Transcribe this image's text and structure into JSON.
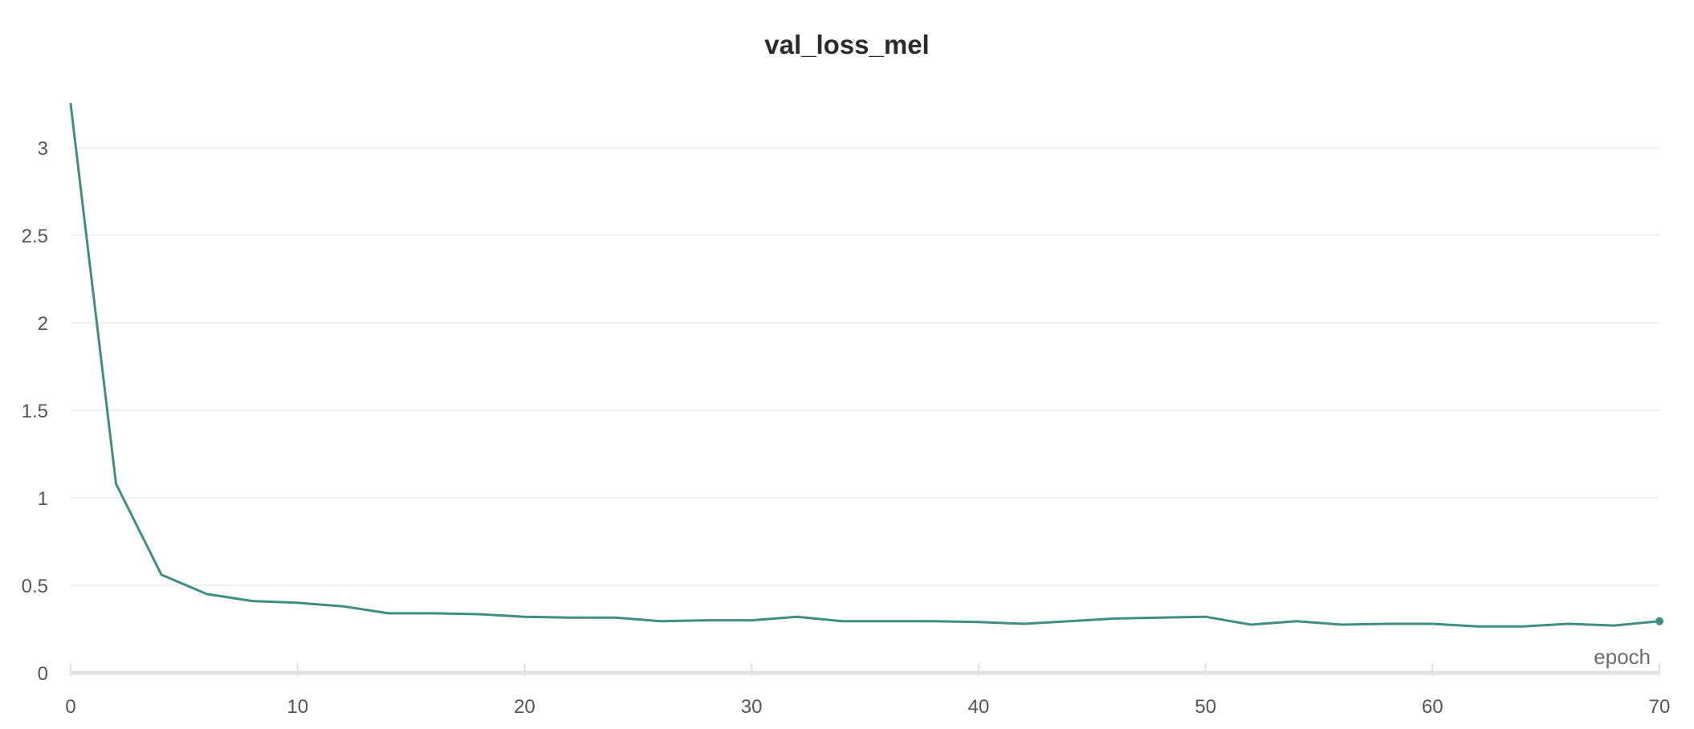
{
  "chart_data": {
    "type": "line",
    "title": "val_loss_mel",
    "xlabel": "epoch",
    "ylabel": "",
    "xlim": [
      0,
      70
    ],
    "ylim": [
      0,
      3.3
    ],
    "x_ticks": [
      0,
      10,
      20,
      30,
      40,
      50,
      60,
      70
    ],
    "y_ticks": [
      0,
      0.5,
      1,
      1.5,
      2,
      2.5,
      3
    ],
    "x_tick_labels": [
      "0",
      "10",
      "20",
      "30",
      "40",
      "50",
      "60",
      "70"
    ],
    "y_tick_labels": [
      "0",
      "0.5",
      "1",
      "1.5",
      "2",
      "2.5",
      "3"
    ],
    "grid": true,
    "legend": "none",
    "colors": {
      "series": "#3f8e84",
      "grid": "#ececec",
      "axis": "#e2e2e2"
    },
    "series": [
      {
        "x": [
          0,
          2,
          4,
          6,
          8,
          10,
          12,
          14,
          16,
          18,
          20,
          22,
          24,
          26,
          28,
          30,
          32,
          34,
          36,
          38,
          40,
          42,
          44,
          46,
          48,
          50,
          52,
          54,
          56,
          58,
          60,
          62,
          64,
          66,
          68,
          70
        ],
        "values": [
          3.25,
          1.08,
          0.56,
          0.45,
          0.41,
          0.4,
          0.38,
          0.34,
          0.34,
          0.335,
          0.32,
          0.315,
          0.315,
          0.295,
          0.3,
          0.3,
          0.32,
          0.295,
          0.295,
          0.295,
          0.29,
          0.28,
          0.295,
          0.31,
          0.315,
          0.32,
          0.275,
          0.295,
          0.275,
          0.28,
          0.28,
          0.265,
          0.265,
          0.28,
          0.27,
          0.295
        ]
      }
    ]
  }
}
